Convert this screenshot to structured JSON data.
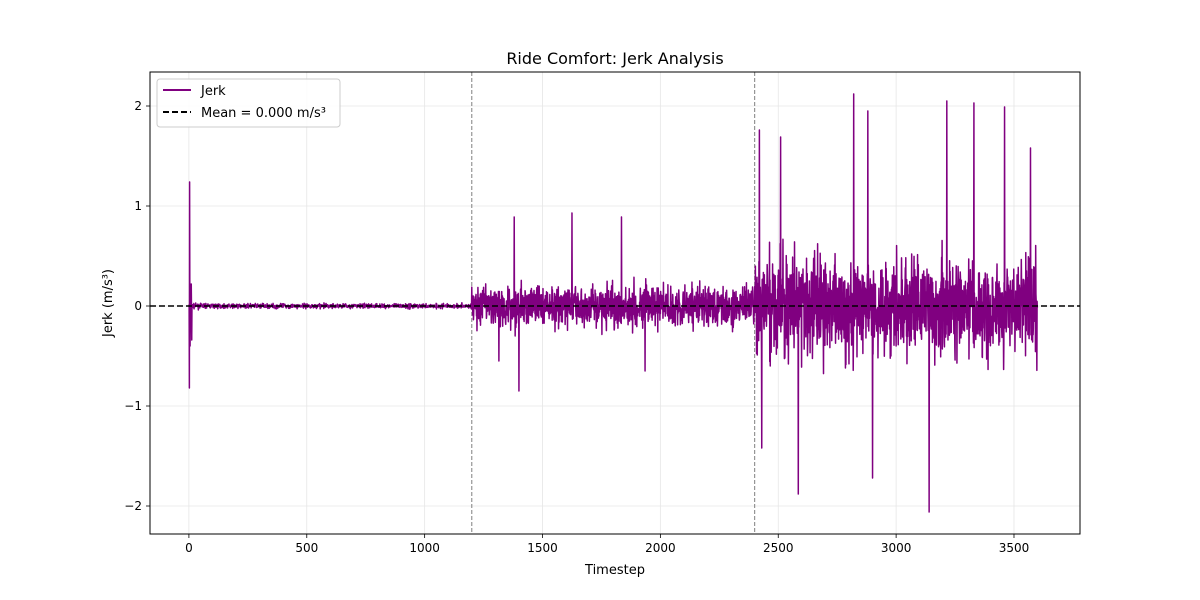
{
  "chart_data": {
    "type": "line",
    "title": "Ride Comfort: Jerk Analysis",
    "xlabel": "Timestep",
    "ylabel": "Jerk (m/s³)",
    "xlim": [
      -165,
      3780
    ],
    "ylim": [
      -2.28,
      2.34
    ],
    "x_ticks": [
      0,
      500,
      1000,
      1500,
      2000,
      2500,
      3000,
      3500
    ],
    "x_tick_labels": [
      "0",
      "500",
      "1000",
      "1500",
      "2000",
      "2500",
      "3000",
      "3500"
    ],
    "y_ticks": [
      -2,
      -1,
      0,
      1,
      2
    ],
    "y_tick_labels": [
      "−2",
      "−1",
      "0",
      "1",
      "2"
    ],
    "grid": true,
    "legend_position": "upper-left",
    "series": [
      {
        "name": "Jerk",
        "color": "#800080",
        "style": "solid",
        "n_points": 3600,
        "segments": [
          {
            "x_range": [
              0,
              1200
            ],
            "amplitude": 0.04
          },
          {
            "x_range": [
              1200,
              2400
            ],
            "amplitude": 0.35
          },
          {
            "x_range": [
              2400,
              3600
            ],
            "amplitude": 0.85
          }
        ],
        "notable_points": [
          {
            "x": 2,
            "y": -0.82
          },
          {
            "x": 3,
            "y": 1.24
          },
          {
            "x": 5,
            "y": -0.4
          },
          {
            "x": 10,
            "y": 0.22
          },
          {
            "x": 12,
            "y": -0.34
          },
          {
            "x": 1315,
            "y": -0.55
          },
          {
            "x": 1380,
            "y": 0.89
          },
          {
            "x": 1400,
            "y": -0.85
          },
          {
            "x": 1625,
            "y": 0.93
          },
          {
            "x": 1835,
            "y": 0.89
          },
          {
            "x": 1935,
            "y": -0.65
          },
          {
            "x": 2420,
            "y": 1.76
          },
          {
            "x": 2430,
            "y": -1.42
          },
          {
            "x": 2510,
            "y": 1.69
          },
          {
            "x": 2585,
            "y": -1.88
          },
          {
            "x": 2820,
            "y": 2.12
          },
          {
            "x": 2880,
            "y": 1.95
          },
          {
            "x": 2900,
            "y": -1.72
          },
          {
            "x": 3140,
            "y": -2.06
          },
          {
            "x": 3215,
            "y": 2.05
          },
          {
            "x": 3330,
            "y": 2.03
          },
          {
            "x": 3460,
            "y": 1.99
          },
          {
            "x": 3570,
            "y": 1.58
          }
        ]
      },
      {
        "name": "Mean = 0.000 m/s³",
        "color": "#000000",
        "style": "dashed",
        "y": 0.0
      }
    ],
    "vertical_markers": [
      {
        "x": 1200,
        "color": "#808080",
        "style": "dashed"
      },
      {
        "x": 2400,
        "color": "#808080",
        "style": "dashed"
      }
    ]
  }
}
